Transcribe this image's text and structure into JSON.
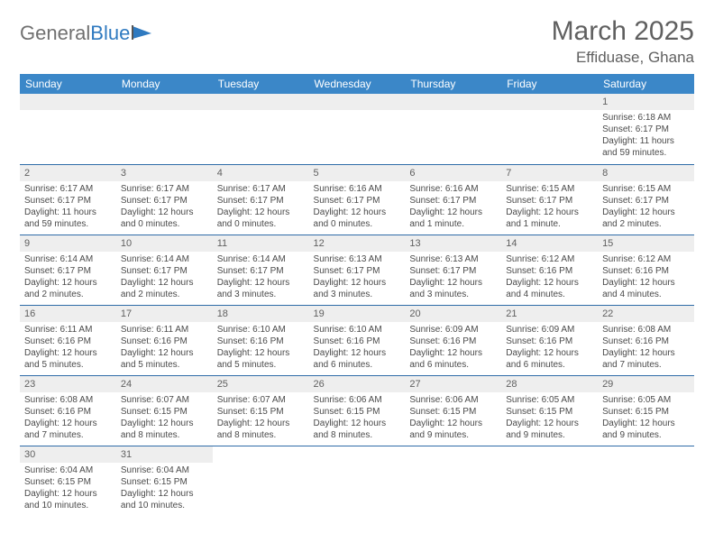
{
  "logo": {
    "text1": "General",
    "text2": "Blue"
  },
  "title": "March 2025",
  "location": "Effiduase, Ghana",
  "colors": {
    "header_bg": "#3b87c8",
    "header_fg": "#ffffff",
    "daynum_bg": "#eeeeee",
    "row_border": "#2f6ca8",
    "text": "#4a4a4a",
    "title_color": "#606060"
  },
  "weekdays": [
    "Sunday",
    "Monday",
    "Tuesday",
    "Wednesday",
    "Thursday",
    "Friday",
    "Saturday"
  ],
  "first_weekday_index": 6,
  "days": [
    {
      "n": 1,
      "sr": "6:18 AM",
      "ss": "6:17 PM",
      "dl": "11 hours and 59 minutes."
    },
    {
      "n": 2,
      "sr": "6:17 AM",
      "ss": "6:17 PM",
      "dl": "11 hours and 59 minutes."
    },
    {
      "n": 3,
      "sr": "6:17 AM",
      "ss": "6:17 PM",
      "dl": "12 hours and 0 minutes."
    },
    {
      "n": 4,
      "sr": "6:17 AM",
      "ss": "6:17 PM",
      "dl": "12 hours and 0 minutes."
    },
    {
      "n": 5,
      "sr": "6:16 AM",
      "ss": "6:17 PM",
      "dl": "12 hours and 0 minutes."
    },
    {
      "n": 6,
      "sr": "6:16 AM",
      "ss": "6:17 PM",
      "dl": "12 hours and 1 minute."
    },
    {
      "n": 7,
      "sr": "6:15 AM",
      "ss": "6:17 PM",
      "dl": "12 hours and 1 minute."
    },
    {
      "n": 8,
      "sr": "6:15 AM",
      "ss": "6:17 PM",
      "dl": "12 hours and 2 minutes."
    },
    {
      "n": 9,
      "sr": "6:14 AM",
      "ss": "6:17 PM",
      "dl": "12 hours and 2 minutes."
    },
    {
      "n": 10,
      "sr": "6:14 AM",
      "ss": "6:17 PM",
      "dl": "12 hours and 2 minutes."
    },
    {
      "n": 11,
      "sr": "6:14 AM",
      "ss": "6:17 PM",
      "dl": "12 hours and 3 minutes."
    },
    {
      "n": 12,
      "sr": "6:13 AM",
      "ss": "6:17 PM",
      "dl": "12 hours and 3 minutes."
    },
    {
      "n": 13,
      "sr": "6:13 AM",
      "ss": "6:17 PM",
      "dl": "12 hours and 3 minutes."
    },
    {
      "n": 14,
      "sr": "6:12 AM",
      "ss": "6:16 PM",
      "dl": "12 hours and 4 minutes."
    },
    {
      "n": 15,
      "sr": "6:12 AM",
      "ss": "6:16 PM",
      "dl": "12 hours and 4 minutes."
    },
    {
      "n": 16,
      "sr": "6:11 AM",
      "ss": "6:16 PM",
      "dl": "12 hours and 5 minutes."
    },
    {
      "n": 17,
      "sr": "6:11 AM",
      "ss": "6:16 PM",
      "dl": "12 hours and 5 minutes."
    },
    {
      "n": 18,
      "sr": "6:10 AM",
      "ss": "6:16 PM",
      "dl": "12 hours and 5 minutes."
    },
    {
      "n": 19,
      "sr": "6:10 AM",
      "ss": "6:16 PM",
      "dl": "12 hours and 6 minutes."
    },
    {
      "n": 20,
      "sr": "6:09 AM",
      "ss": "6:16 PM",
      "dl": "12 hours and 6 minutes."
    },
    {
      "n": 21,
      "sr": "6:09 AM",
      "ss": "6:16 PM",
      "dl": "12 hours and 6 minutes."
    },
    {
      "n": 22,
      "sr": "6:08 AM",
      "ss": "6:16 PM",
      "dl": "12 hours and 7 minutes."
    },
    {
      "n": 23,
      "sr": "6:08 AM",
      "ss": "6:16 PM",
      "dl": "12 hours and 7 minutes."
    },
    {
      "n": 24,
      "sr": "6:07 AM",
      "ss": "6:15 PM",
      "dl": "12 hours and 8 minutes."
    },
    {
      "n": 25,
      "sr": "6:07 AM",
      "ss": "6:15 PM",
      "dl": "12 hours and 8 minutes."
    },
    {
      "n": 26,
      "sr": "6:06 AM",
      "ss": "6:15 PM",
      "dl": "12 hours and 8 minutes."
    },
    {
      "n": 27,
      "sr": "6:06 AM",
      "ss": "6:15 PM",
      "dl": "12 hours and 9 minutes."
    },
    {
      "n": 28,
      "sr": "6:05 AM",
      "ss": "6:15 PM",
      "dl": "12 hours and 9 minutes."
    },
    {
      "n": 29,
      "sr": "6:05 AM",
      "ss": "6:15 PM",
      "dl": "12 hours and 9 minutes."
    },
    {
      "n": 30,
      "sr": "6:04 AM",
      "ss": "6:15 PM",
      "dl": "12 hours and 10 minutes."
    },
    {
      "n": 31,
      "sr": "6:04 AM",
      "ss": "6:15 PM",
      "dl": "12 hours and 10 minutes."
    }
  ],
  "labels": {
    "sunrise": "Sunrise: ",
    "sunset": "Sunset: ",
    "daylight": "Daylight: "
  }
}
